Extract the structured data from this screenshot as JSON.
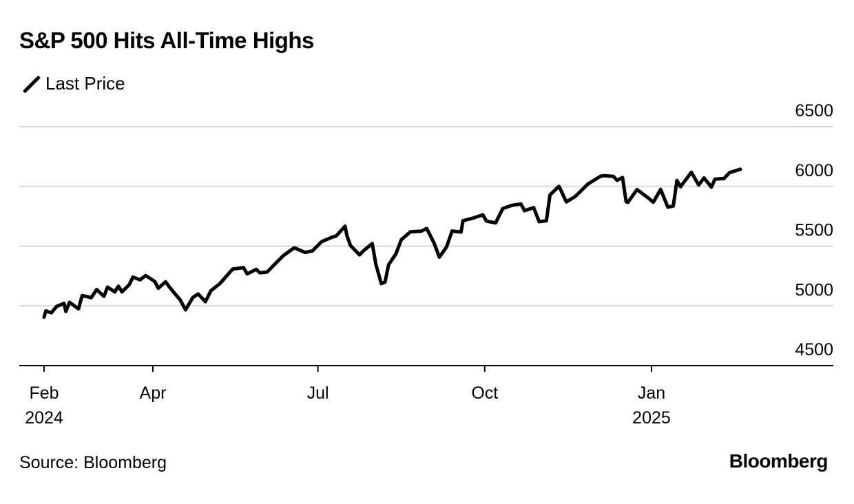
{
  "title": "S&P 500 Hits All-Time Highs",
  "legend": {
    "label": "Last Price"
  },
  "source": "Source: Bloomberg",
  "logo": "Bloomberg",
  "chart_data": {
    "type": "line",
    "title": "S&P 500 Hits All-Time Highs",
    "xlabel": "",
    "ylabel": "",
    "ylim": [
      4500,
      6500
    ],
    "yticks": [
      4500,
      5000,
      5500,
      6000,
      6500
    ],
    "xlim": [
      "2024-01-26",
      "2025-02-25"
    ],
    "xticks": [
      {
        "date": "2024-02-01",
        "label": "Feb",
        "sublabel": "2024"
      },
      {
        "date": "2024-04-01",
        "label": "Apr",
        "sublabel": ""
      },
      {
        "date": "2024-07-01",
        "label": "Jul",
        "sublabel": ""
      },
      {
        "date": "2024-10-01",
        "label": "Oct",
        "sublabel": ""
      },
      {
        "date": "2025-01-01",
        "label": "Jan",
        "sublabel": "2025"
      }
    ],
    "grid": true,
    "line_color": "#000000",
    "grid_color": "#d9d9d9",
    "series": [
      {
        "name": "Last Price",
        "x": [
          "2024-02-01",
          "2024-02-02",
          "2024-02-05",
          "2024-02-08",
          "2024-02-12",
          "2024-02-13",
          "2024-02-15",
          "2024-02-20",
          "2024-02-22",
          "2024-02-27",
          "2024-03-01",
          "2024-03-05",
          "2024-03-07",
          "2024-03-11",
          "2024-03-13",
          "2024-03-15",
          "2024-03-19",
          "2024-03-21",
          "2024-03-25",
          "2024-03-28",
          "2024-04-02",
          "2024-04-04",
          "2024-04-08",
          "2024-04-10",
          "2024-04-12",
          "2024-04-16",
          "2024-04-19",
          "2024-04-23",
          "2024-04-26",
          "2024-04-30",
          "2024-05-03",
          "2024-05-08",
          "2024-05-15",
          "2024-05-21",
          "2024-05-23",
          "2024-05-28",
          "2024-05-30",
          "2024-06-03",
          "2024-06-07",
          "2024-06-12",
          "2024-06-18",
          "2024-06-24",
          "2024-06-28",
          "2024-07-03",
          "2024-07-09",
          "2024-07-11",
          "2024-07-16",
          "2024-07-17",
          "2024-07-19",
          "2024-07-24",
          "2024-07-26",
          "2024-07-31",
          "2024-08-02",
          "2024-08-05",
          "2024-08-07",
          "2024-08-09",
          "2024-08-13",
          "2024-08-16",
          "2024-08-21",
          "2024-08-27",
          "2024-08-30",
          "2024-09-03",
          "2024-09-06",
          "2024-09-10",
          "2024-09-13",
          "2024-09-18",
          "2024-09-19",
          "2024-09-24",
          "2024-09-30",
          "2024-10-02",
          "2024-10-07",
          "2024-10-11",
          "2024-10-16",
          "2024-10-21",
          "2024-10-23",
          "2024-10-28",
          "2024-10-31",
          "2024-11-04",
          "2024-11-06",
          "2024-11-11",
          "2024-11-15",
          "2024-11-20",
          "2024-11-27",
          "2024-12-04",
          "2024-12-06",
          "2024-12-11",
          "2024-12-13",
          "2024-12-16",
          "2024-12-18",
          "2024-12-19",
          "2024-12-24",
          "2024-12-30",
          "2025-01-02",
          "2025-01-06",
          "2025-01-10",
          "2025-01-13",
          "2025-01-15",
          "2025-01-17",
          "2025-01-23",
          "2025-01-27",
          "2025-01-30",
          "2025-02-03",
          "2025-02-05",
          "2025-02-10",
          "2025-02-13",
          "2025-02-19"
        ],
        "values": [
          4906,
          4958,
          4942,
          4996,
          5021,
          4953,
          5030,
          4975,
          5087,
          5069,
          5137,
          5079,
          5157,
          5117,
          5165,
          5117,
          5178,
          5241,
          5218,
          5254,
          5205,
          5147,
          5202,
          5160,
          5123,
          5051,
          4967,
          5070,
          5100,
          5035,
          5127,
          5187,
          5308,
          5321,
          5268,
          5306,
          5277,
          5283,
          5346,
          5421,
          5487,
          5447,
          5460,
          5537,
          5576,
          5584,
          5667,
          5588,
          5505,
          5427,
          5459,
          5522,
          5346,
          5186,
          5199,
          5344,
          5435,
          5554,
          5620,
          5625,
          5648,
          5528,
          5408,
          5495,
          5626,
          5618,
          5713,
          5732,
          5762,
          5709,
          5695,
          5815,
          5842,
          5853,
          5797,
          5823,
          5705,
          5712,
          5929,
          6001,
          5870,
          5917,
          6021,
          6086,
          6090,
          6084,
          6051,
          6074,
          5872,
          5867,
          5974,
          5906,
          5868,
          5975,
          5827,
          5836,
          6050,
          5997,
          6119,
          6012,
          6071,
          5994,
          6061,
          6066,
          6115,
          6144
        ]
      }
    ]
  }
}
